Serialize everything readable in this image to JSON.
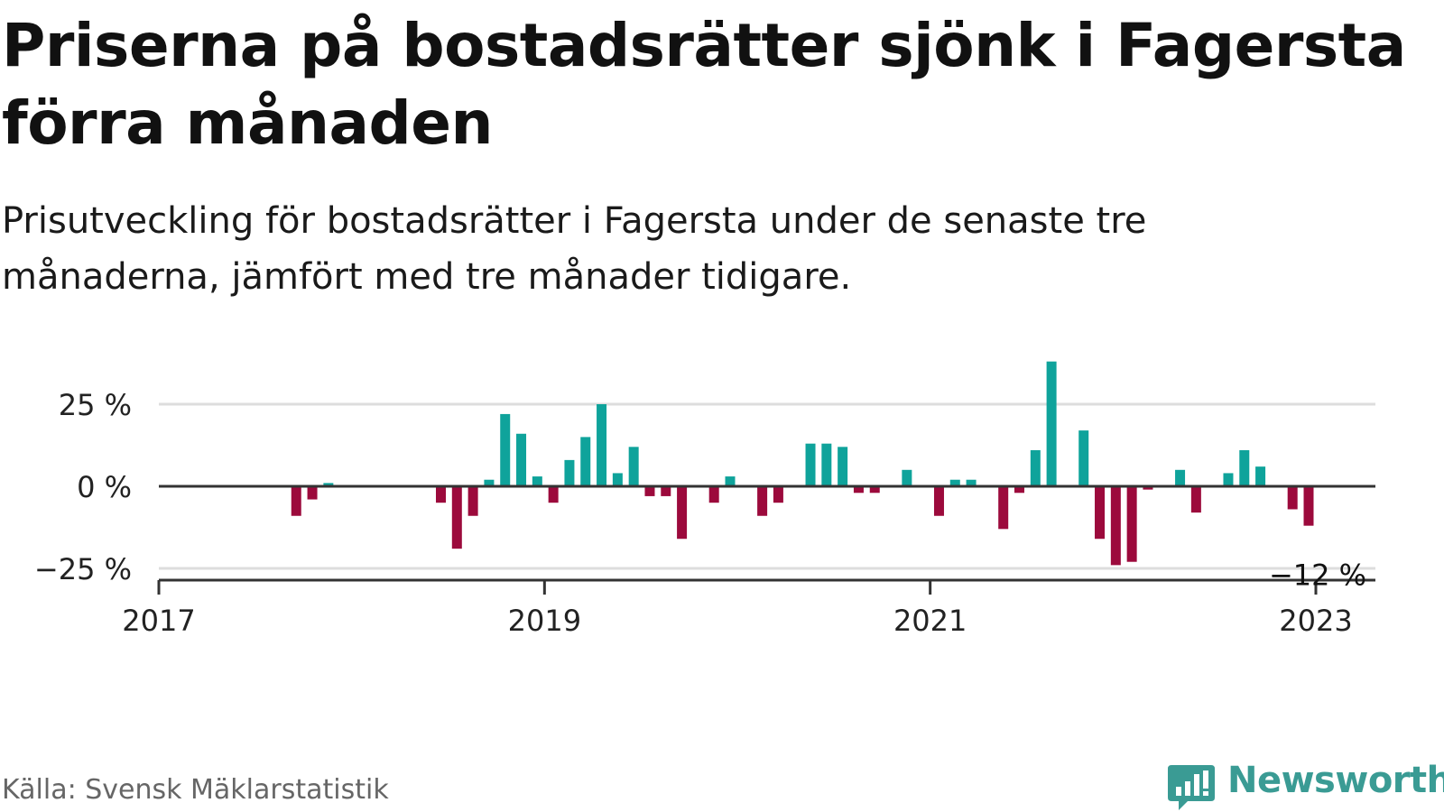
{
  "header": {
    "title": "Priserna på bostadsrätter sjönk i Fagersta förra månaden",
    "subtitle": "Prisutveckling för bostadsrätter i Fagersta under de senaste tre månaderna, jämfört med tre månader tidigare."
  },
  "footer": {
    "source": "Källa: Svensk Mäklarstatistik",
    "brand": "Newsworthy",
    "brand_icon": "bar-chart-speech-bubble-icon"
  },
  "colors": {
    "positive": "#0fa39b",
    "negative": "#9c0a3c",
    "gridline": "#dddddd",
    "zero_line": "#333333",
    "brand": "#3a9b94"
  },
  "chart_data": {
    "type": "bar",
    "title": "Priserna på bostadsrätter sjönk i Fagersta förra månaden",
    "subtitle": "Prisutveckling för bostadsrätter i Fagersta under de senaste tre månaderna, jämfört med tre månader tidigare.",
    "xlabel": "",
    "ylabel": "",
    "ylim": [
      -28,
      40
    ],
    "y_ticks": [
      {
        "value": 25,
        "label": "25 %"
      },
      {
        "value": 0,
        "label": "0 %"
      },
      {
        "value": -25,
        "label": "−25 %"
      }
    ],
    "x_ticks": [
      {
        "value": "2017-01",
        "label": "2017"
      },
      {
        "value": "2019-01",
        "label": "2019"
      },
      {
        "value": "2021-01",
        "label": "2021"
      },
      {
        "value": "2023-01",
        "label": "2023"
      }
    ],
    "x_range": [
      "2017-01",
      "2023-05"
    ],
    "grid": true,
    "legend": "none",
    "annotation": {
      "x": "2023-01",
      "value": -12,
      "label": "−12 %"
    },
    "x": [
      "2017-01",
      "2017-02",
      "2017-03",
      "2017-04",
      "2017-05",
      "2017-06",
      "2017-07",
      "2017-08",
      "2017-09",
      "2017-10",
      "2017-11",
      "2017-12",
      "2018-01",
      "2018-02",
      "2018-03",
      "2018-04",
      "2018-05",
      "2018-06",
      "2018-07",
      "2018-08",
      "2018-09",
      "2018-10",
      "2018-11",
      "2018-12",
      "2019-01",
      "2019-02",
      "2019-03",
      "2019-04",
      "2019-05",
      "2019-06",
      "2019-07",
      "2019-08",
      "2019-09",
      "2019-10",
      "2019-11",
      "2019-12",
      "2020-01",
      "2020-02",
      "2020-03",
      "2020-04",
      "2020-05",
      "2020-06",
      "2020-07",
      "2020-08",
      "2020-09",
      "2020-10",
      "2020-11",
      "2020-12",
      "2021-01",
      "2021-02",
      "2021-03",
      "2021-04",
      "2021-05",
      "2021-06",
      "2021-07",
      "2021-08",
      "2021-09",
      "2021-10",
      "2021-11",
      "2021-12",
      "2022-01",
      "2022-02",
      "2022-03",
      "2022-04",
      "2022-05",
      "2022-06",
      "2022-07",
      "2022-08",
      "2022-09",
      "2022-10",
      "2022-11",
      "2022-12",
      "2023-01"
    ],
    "values": [
      null,
      null,
      null,
      null,
      null,
      null,
      null,
      null,
      null,
      -9,
      -4,
      1,
      null,
      null,
      null,
      null,
      null,
      null,
      -5,
      -19,
      -9,
      2,
      22,
      16,
      3,
      -5,
      8,
      15,
      25,
      4,
      12,
      -3,
      -3,
      -16,
      null,
      -5,
      3,
      null,
      -9,
      -5,
      null,
      13,
      13,
      12,
      -2,
      -2,
      null,
      5,
      null,
      -9,
      2,
      2,
      null,
      -13,
      -2,
      11,
      38,
      null,
      17,
      -16,
      -24,
      -23,
      -1,
      null,
      5,
      -8,
      null,
      4,
      11,
      6,
      null,
      -7,
      -12
    ]
  }
}
